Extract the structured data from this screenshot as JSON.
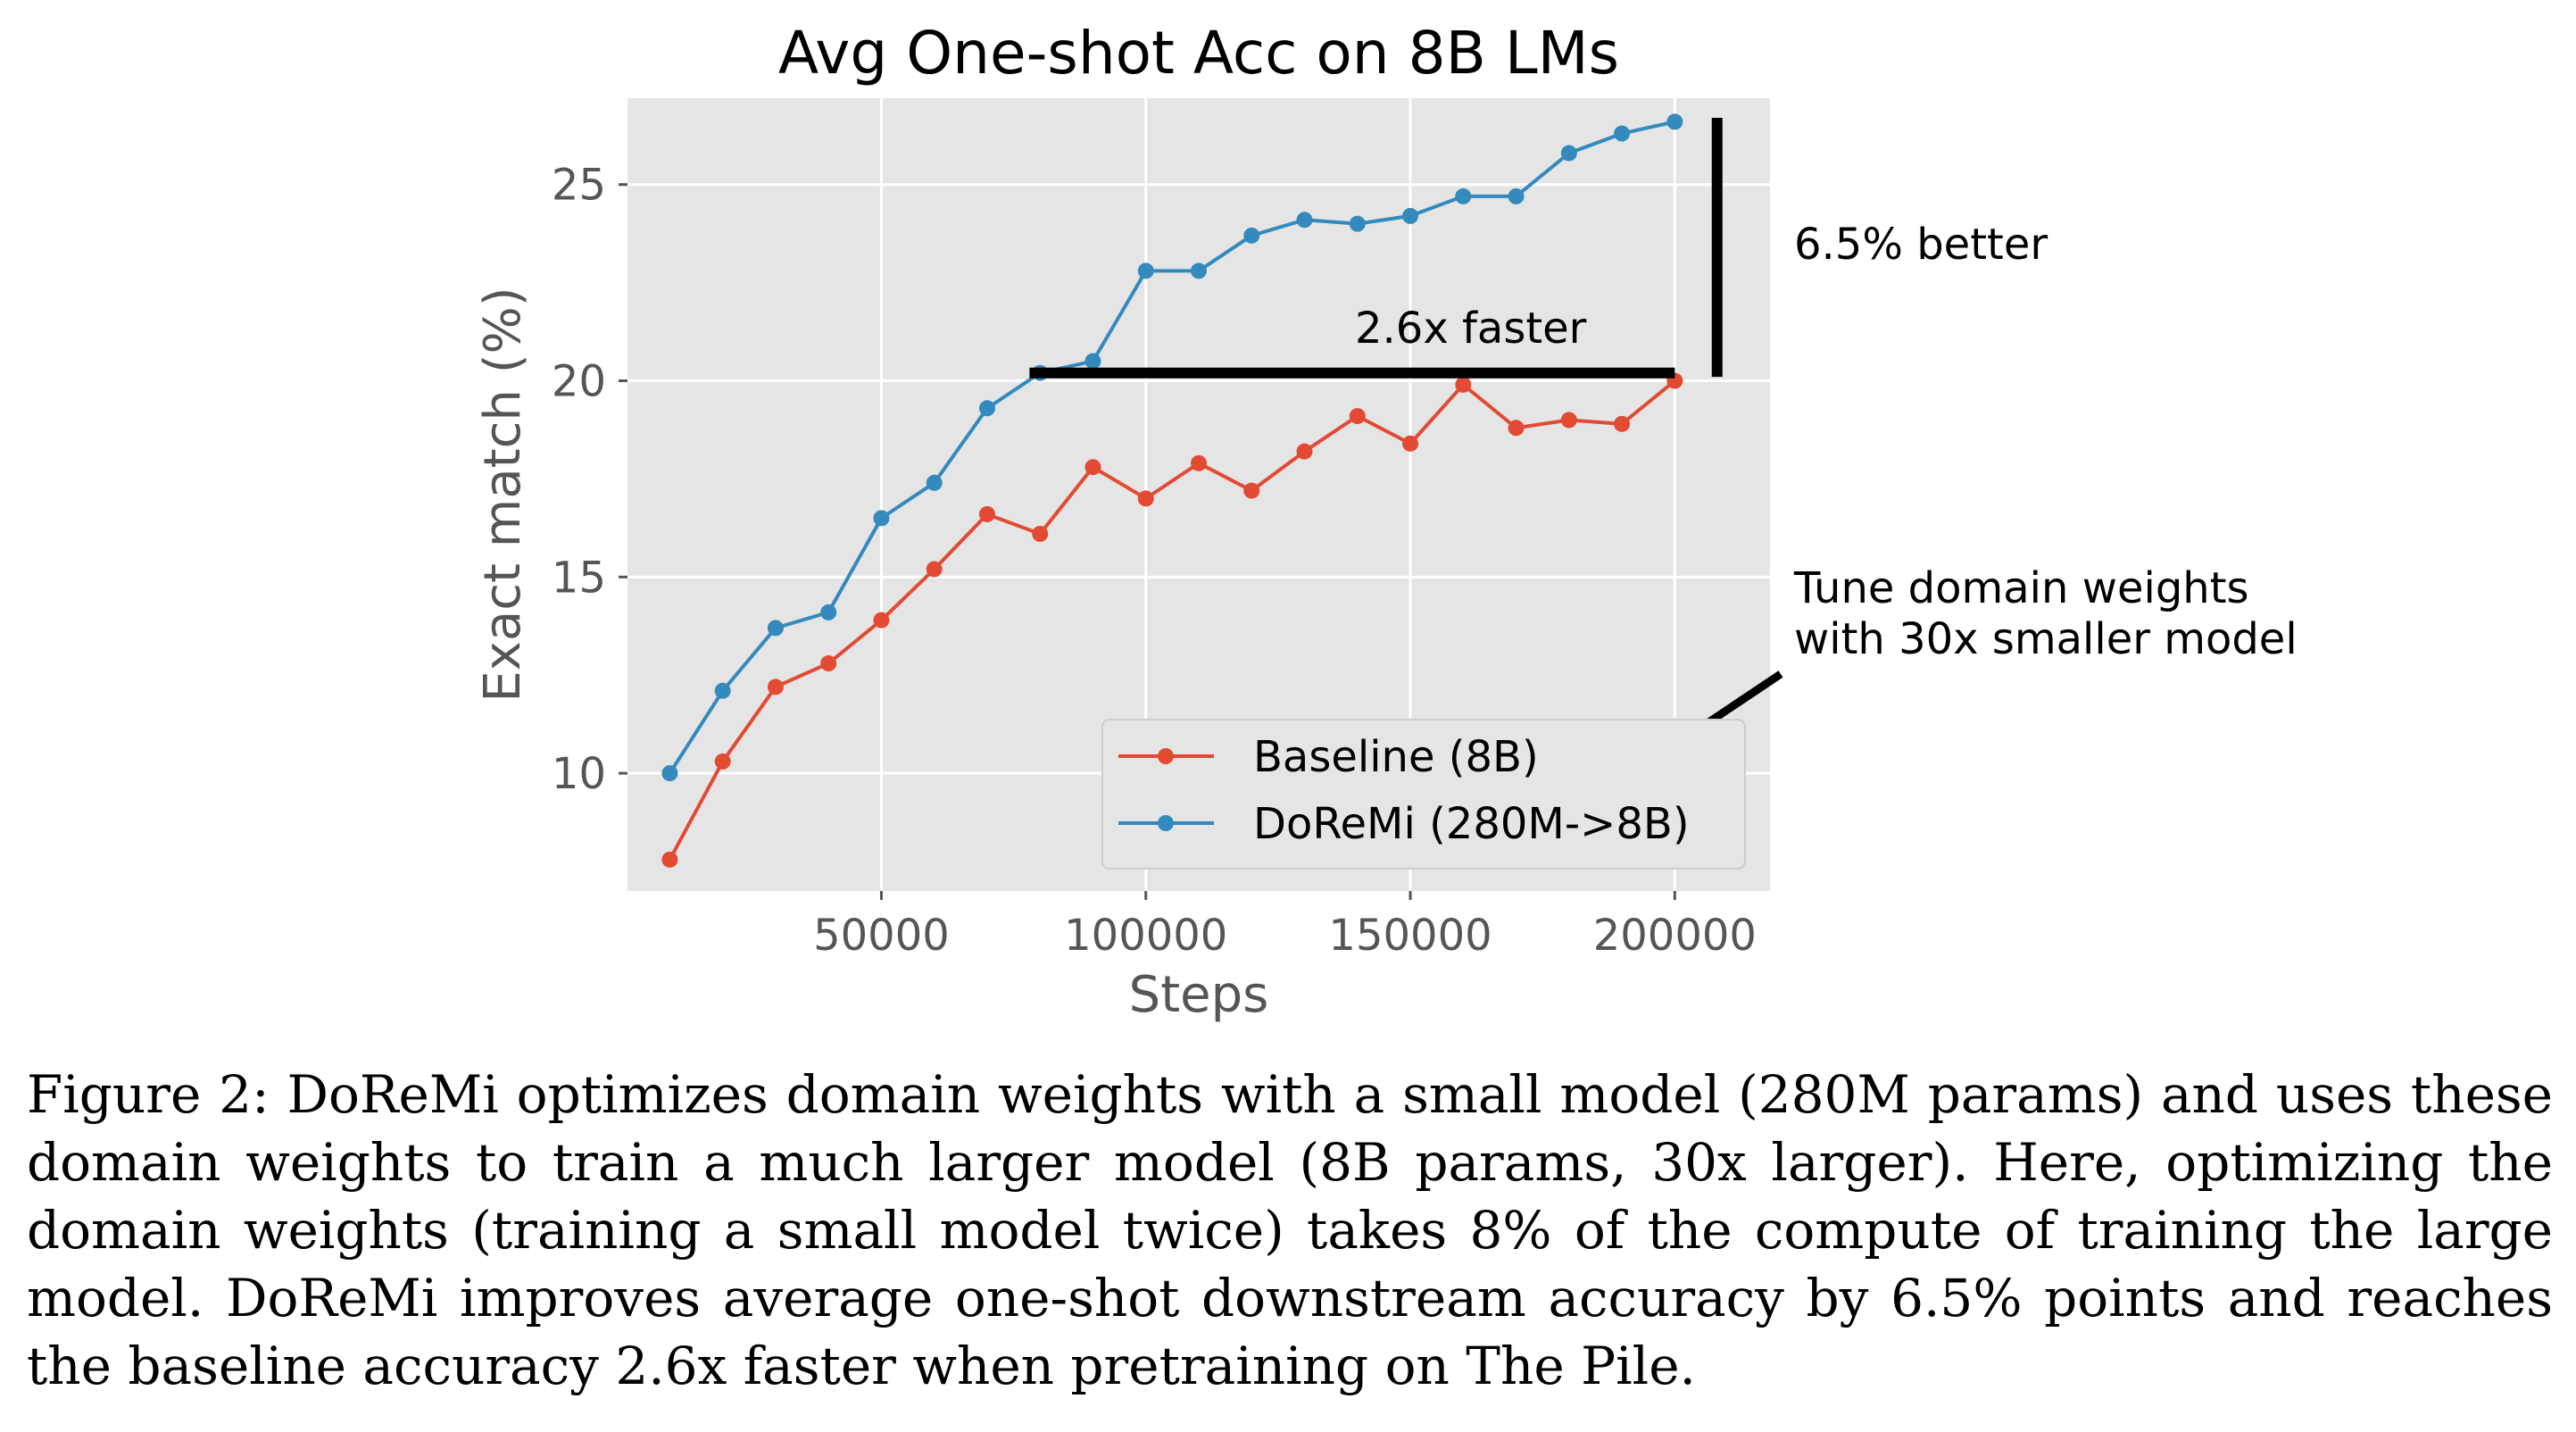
{
  "chart_data": {
    "type": "line",
    "title": "Avg One-shot Acc on 8B LMs",
    "xlabel": "Steps",
    "ylabel": "Exact match (%)",
    "xlim": [
      2000,
      218000
    ],
    "ylim": [
      7,
      27.2
    ],
    "xticks": [
      50000,
      100000,
      150000,
      200000
    ],
    "yticks": [
      10,
      15,
      20,
      25
    ],
    "grid": true,
    "legend_position": "lower-right",
    "x": [
      10000,
      20000,
      30000,
      40000,
      50000,
      60000,
      70000,
      80000,
      90000,
      100000,
      110000,
      120000,
      130000,
      140000,
      150000,
      160000,
      170000,
      180000,
      190000,
      200000
    ],
    "series": [
      {
        "name": "Baseline (8B)",
        "color": "#E24A33",
        "values": [
          7.8,
          10.3,
          12.2,
          12.8,
          13.9,
          15.2,
          16.6,
          16.1,
          17.8,
          17.0,
          17.9,
          17.2,
          18.2,
          19.1,
          18.4,
          19.9,
          18.8,
          19.0,
          18.9,
          20.0
        ]
      },
      {
        "name": "DoReMi (280M->8B)",
        "color": "#348ABD",
        "values": [
          10.0,
          12.1,
          13.7,
          14.1,
          16.5,
          17.4,
          19.3,
          20.2,
          20.5,
          22.8,
          22.8,
          23.7,
          24.1,
          24.0,
          24.2,
          24.7,
          24.7,
          25.8,
          26.3,
          26.6
        ]
      }
    ],
    "annotations": {
      "faster_label": "2.6x faster",
      "faster_line": {
        "x_start": 78000,
        "x_end": 200000,
        "y": 20.2
      },
      "better_label": "6.5% better",
      "better_line": {
        "x": 208000,
        "y_start": 20.1,
        "y_end": 26.7
      },
      "tune_label_line1": "Tune domain weights",
      "tune_label_line2": "with 30x smaller model"
    },
    "colors": {
      "plot_background": "#E5E5E5",
      "grid": "#FFFFFF",
      "tick_label": "#555555"
    }
  },
  "caption": "Figure 2: DoReMi optimizes domain weights with a small model (280M params) and uses these domain weights to train a much larger model (8B params, 30x larger). Here, optimizing the domain weights (training a small model twice) takes 8% of the compute of training the large model. DoReMi improves average one-shot downstream accuracy by 6.5% points and reaches the baseline accuracy 2.6x faster when pretraining on The Pile."
}
